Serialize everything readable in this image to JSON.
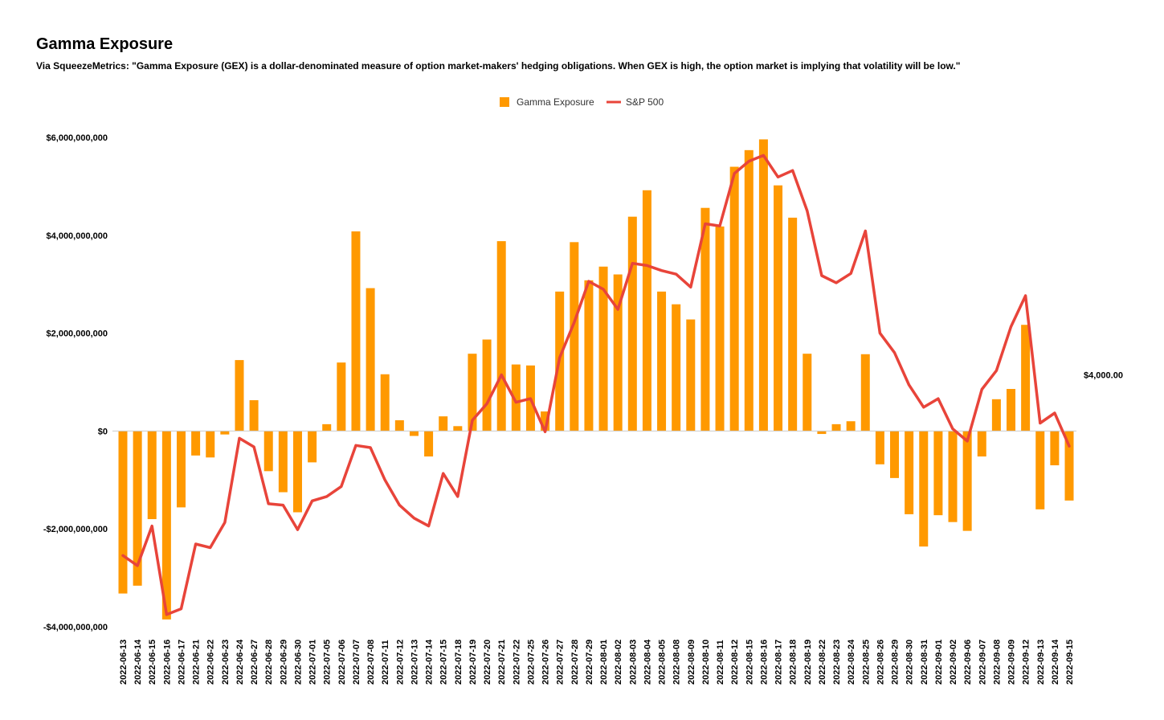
{
  "page": {
    "title": "Gamma Exposure",
    "subtitle": "Via SqueezeMetrics: \"Gamma Exposure (GEX) is a dollar-denominated measure of option market-makers' hedging obligations. When GEX is high, the option market is implying that volatility will be low.\""
  },
  "chart_data": {
    "type": "bar",
    "title": "Gamma Exposure",
    "colors": {
      "bar": "#ff9900",
      "line": "#e8443a"
    },
    "legend": {
      "position": "top-center",
      "entries": [
        "Gamma Exposure",
        "S&P 500"
      ]
    },
    "left_axis": {
      "ylim": [
        -4000000000,
        6000000000
      ],
      "ticks": [
        6000000000,
        4000000000,
        2000000000,
        0,
        -2000000000,
        -4000000000
      ],
      "tick_labels": [
        "$6,000,000,000",
        "$4,000,000,000",
        "$2,000,000,000",
        "$0",
        "-$2,000,000,000",
        "-$4,000,000,000"
      ]
    },
    "right_axis": {
      "ylim": [
        3650,
        4330
      ],
      "tick_values": [
        4000
      ],
      "tick_labels": [
        "$4,000.00"
      ]
    },
    "categories": [
      "2022-06-13",
      "2022-06-14",
      "2022-06-15",
      "2022-06-16",
      "2022-06-17",
      "2022-06-21",
      "2022-06-22",
      "2022-06-23",
      "2022-06-24",
      "2022-06-27",
      "2022-06-28",
      "2022-06-29",
      "2022-06-30",
      "2022-07-01",
      "2022-07-05",
      "2022-07-06",
      "2022-07-07",
      "2022-07-08",
      "2022-07-11",
      "2022-07-12",
      "2022-07-13",
      "2022-07-14",
      "2022-07-15",
      "2022-07-18",
      "2022-07-19",
      "2022-07-20",
      "2022-07-21",
      "2022-07-22",
      "2022-07-25",
      "2022-07-26",
      "2022-07-27",
      "2022-07-28",
      "2022-07-29",
      "2022-08-01",
      "2022-08-02",
      "2022-08-03",
      "2022-08-04",
      "2022-08-05",
      "2022-08-08",
      "2022-08-09",
      "2022-08-10",
      "2022-08-11",
      "2022-08-12",
      "2022-08-15",
      "2022-08-16",
      "2022-08-17",
      "2022-08-18",
      "2022-08-19",
      "2022-08-22",
      "2022-08-23",
      "2022-08-24",
      "2022-08-25",
      "2022-08-26",
      "2022-08-29",
      "2022-08-30",
      "2022-08-31",
      "2022-09-01",
      "2022-09-02",
      "2022-09-06",
      "2022-09-07",
      "2022-09-08",
      "2022-09-09",
      "2022-09-12",
      "2022-09-13",
      "2022-09-14",
      "2022-09-15"
    ],
    "series": [
      {
        "name": "Gamma Exposure",
        "type": "bar",
        "axis": "left",
        "values": [
          -3320000000,
          -3160000000,
          -1800000000,
          -3850000000,
          -1560000000,
          -500000000,
          -540000000,
          -70000000,
          1450000000,
          630000000,
          -820000000,
          -1250000000,
          -1660000000,
          -640000000,
          140000000,
          1400000000,
          4080000000,
          2920000000,
          1160000000,
          220000000,
          -100000000,
          -520000000,
          300000000,
          100000000,
          1580000000,
          1870000000,
          3880000000,
          1360000000,
          1340000000,
          400000000,
          2850000000,
          3860000000,
          3080000000,
          3360000000,
          3200000000,
          4380000000,
          4920000000,
          2850000000,
          2590000000,
          2280000000,
          4560000000,
          4180000000,
          5400000000,
          5740000000,
          5960000000,
          5020000000,
          4360000000,
          1580000000,
          -60000000,
          140000000,
          200000000,
          1570000000,
          -680000000,
          -960000000,
          -1700000000,
          -2360000000,
          -1720000000,
          -1860000000,
          -2040000000,
          -520000000,
          650000000,
          860000000,
          2170000000,
          -1600000000,
          -700000000,
          -1420000000
        ]
      },
      {
        "name": "S&P 500",
        "type": "line",
        "axis": "right",
        "values": [
          3749,
          3735,
          3790,
          3667,
          3675,
          3765,
          3760,
          3795,
          3912,
          3900,
          3821,
          3819,
          3785,
          3825,
          3831,
          3845,
          3902,
          3899,
          3854,
          3819,
          3801,
          3790,
          3863,
          3831,
          3937,
          3960,
          4000,
          3962,
          3967,
          3921,
          4024,
          4073,
          4130,
          4119,
          4091,
          4155,
          4152,
          4145,
          4140,
          4122,
          4210,
          4207,
          4280,
          4297,
          4305,
          4275,
          4284,
          4228,
          4138,
          4128,
          4141,
          4200,
          4058,
          4031,
          3986,
          3955,
          3967,
          3925,
          3908,
          3980,
          4006,
          4067,
          4110,
          3933,
          3947,
          3901
        ]
      }
    ]
  }
}
